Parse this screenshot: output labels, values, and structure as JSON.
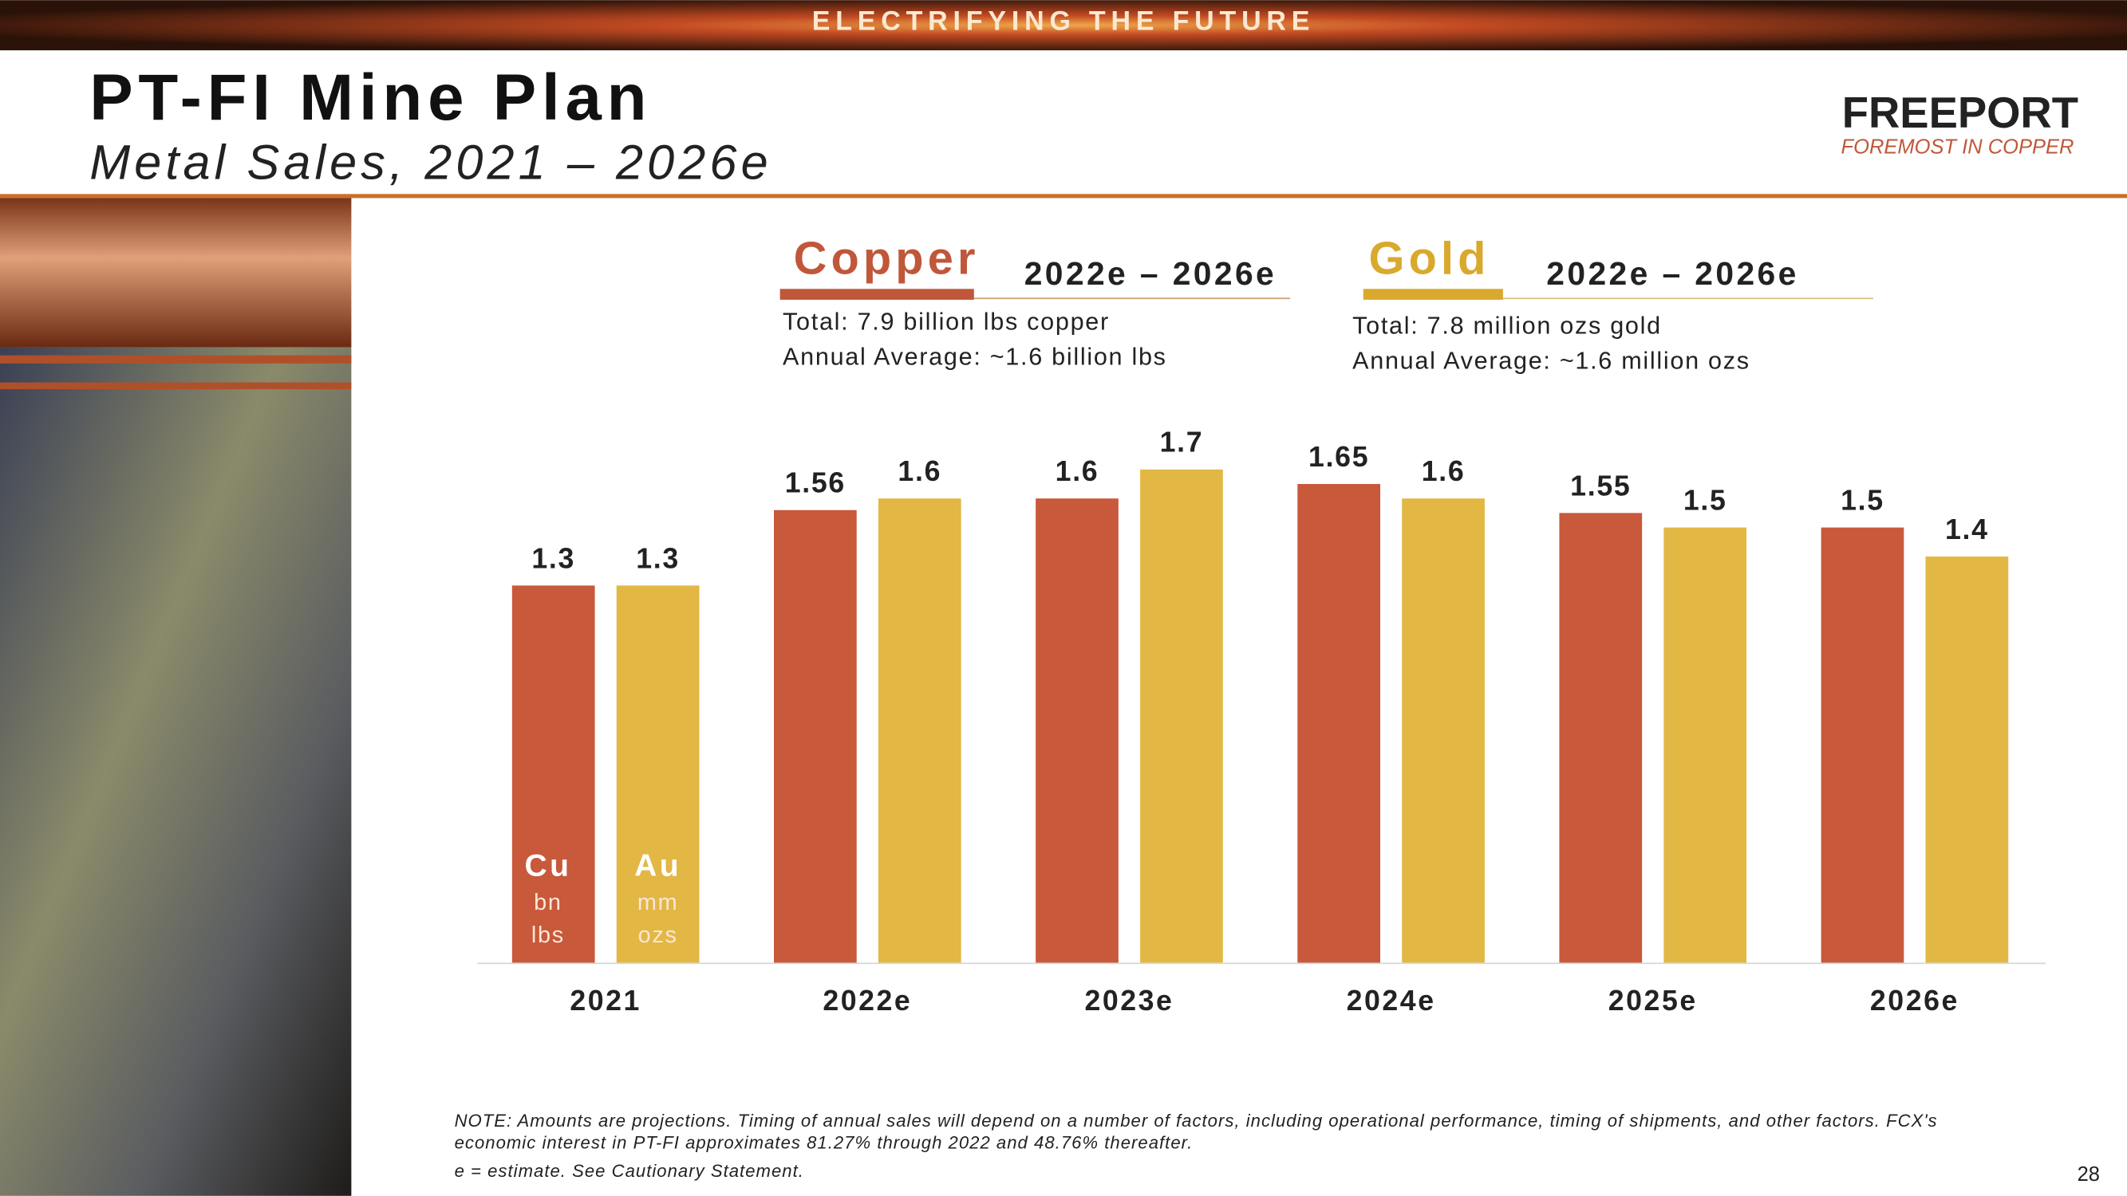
{
  "banner": "ELECTRIFYING THE FUTURE",
  "header": {
    "title": "PT-FI Mine Plan",
    "subtitle": "Metal Sales, 2021 – 2026e"
  },
  "logo": {
    "name": "FREEPORT",
    "tagline": "FOREMOST IN COPPER"
  },
  "panels": [
    {
      "heading": "Copper",
      "period": "2022e – 2026e",
      "lines": [
        "Total: 7.9 billion lbs copper",
        "Annual Average: ~1.6 billion lbs"
      ]
    },
    {
      "heading": "Gold",
      "period": "2022e – 2026e",
      "lines": [
        "Total: 7.8 million ozs gold",
        "Annual Average: ~1.6 million ozs"
      ]
    }
  ],
  "chart_data": {
    "type": "bar",
    "categories": [
      "2021",
      "2022e",
      "2023e",
      "2024e",
      "2025e",
      "2026e"
    ],
    "series": [
      {
        "name": "Cu",
        "units": [
          "bn",
          "lbs"
        ],
        "color": "#c8593a",
        "values": [
          1.3,
          1.56,
          1.6,
          1.65,
          1.55,
          1.5
        ]
      },
      {
        "name": "Au",
        "units": [
          "mm",
          "ozs"
        ],
        "color": "#e2b744",
        "values": [
          1.3,
          1.6,
          1.7,
          1.6,
          1.5,
          1.4
        ]
      }
    ],
    "ylim": [
      0,
      2
    ]
  },
  "notes": [
    "NOTE: Amounts are projections. Timing of annual sales will depend on a number of factors, including operational performance, timing of shipments, and other factors. FCX's",
    "economic interest in PT-FI approximates 81.27% through 2022 and 48.76% thereafter.",
    "e = estimate. See Cautionary Statement."
  ],
  "page_number": "28"
}
